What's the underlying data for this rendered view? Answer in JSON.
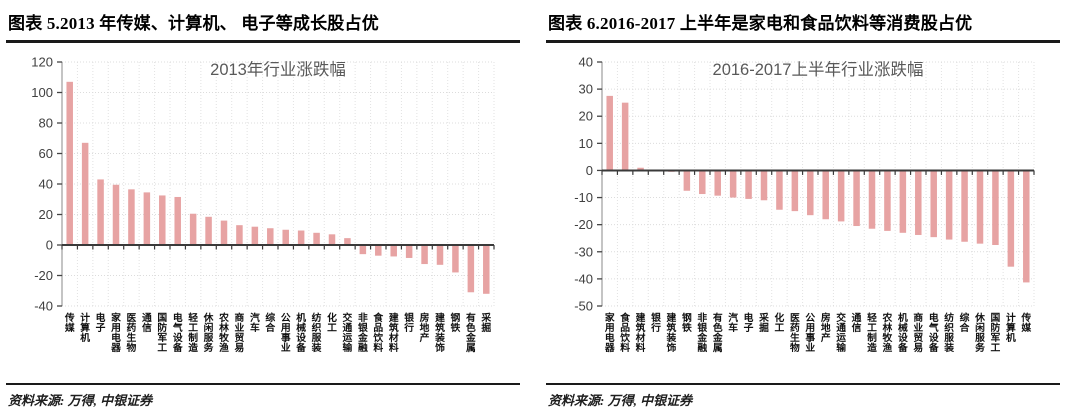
{
  "page_background": "#ffffff",
  "figures": [
    {
      "header": "图表 5.2013 年传媒、计算机、 电子等成长股占优",
      "source": "资料来源: 万得, 中银证券"
    },
    {
      "header": "图表 6.2016-2017 上半年是家电和食品饮料等消费股占优",
      "source": "资料来源: 万得, 中银证券"
    }
  ],
  "chart_data": [
    {
      "type": "bar",
      "title": "2013年行业涨跌幅",
      "xlabel": "",
      "ylabel": "",
      "ylim": [
        -40,
        120
      ],
      "ytick_step": 20,
      "grid": true,
      "legend_position": "none",
      "bar_color": "#e7a3a3",
      "axis_color": "#3a3a3a",
      "title_color": "#595959",
      "categories": [
        "传媒",
        "计算机",
        "电子",
        "家用电器",
        "医药生物",
        "通信",
        "国防军工",
        "电气设备",
        "轻工制造",
        "休闲服务",
        "农林牧渔",
        "商业贸易",
        "汽车",
        "综合",
        "公用事业",
        "机械设备",
        "纺织服装",
        "化工",
        "交通运输",
        "非银金融",
        "食品饮料",
        "建筑材料",
        "银行",
        "房地产",
        "建筑装饰",
        "钢铁",
        "有色金属",
        "采掘"
      ],
      "values": [
        107,
        67,
        43,
        39.5,
        36.5,
        34.5,
        32.5,
        31.5,
        20.5,
        18.5,
        16,
        13,
        12,
        11,
        10,
        9.5,
        8,
        7,
        4.5,
        -6,
        -7,
        -7.5,
        -8.5,
        -12.5,
        -13,
        -18,
        -31,
        -32
      ]
    },
    {
      "type": "bar",
      "title": "2016-2017上半年行业涨跌幅",
      "xlabel": "",
      "ylabel": "",
      "ylim": [
        -50,
        40
      ],
      "ytick_step": 10,
      "grid": true,
      "legend_position": "none",
      "bar_color": "#e7a3a3",
      "axis_color": "#3a3a3a",
      "title_color": "#595959",
      "categories": [
        "家用电器",
        "食品饮料",
        "建筑材料",
        "银行",
        "建筑装饰",
        "钢铁",
        "非银金融",
        "有色金属",
        "汽车",
        "电子",
        "采掘",
        "化工",
        "医药生物",
        "公用事业",
        "房地产",
        "交通运输",
        "通信",
        "轻工制造",
        "农林牧渔",
        "机械设备",
        "商业贸易",
        "电气设备",
        "纺织服装",
        "综合",
        "休闲服务",
        "国防军工",
        "计算机",
        "传媒"
      ],
      "values": [
        27.5,
        25,
        1,
        -0.3,
        -0.5,
        -7.5,
        -8.7,
        -9.3,
        -10,
        -10.5,
        -11,
        -14.5,
        -15,
        -16.5,
        -18,
        -18.8,
        -20.5,
        -21.5,
        -22.3,
        -23,
        -23.8,
        -24.6,
        -25.5,
        -26.3,
        -27,
        -27.5,
        -35.5,
        -41.3
      ]
    }
  ]
}
